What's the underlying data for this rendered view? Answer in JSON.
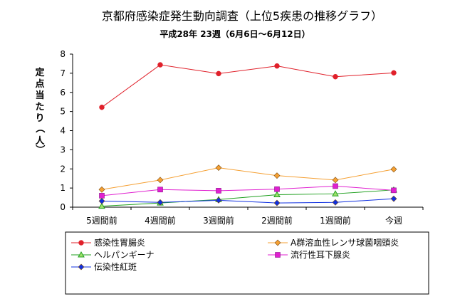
{
  "chart_data": {
    "type": "line",
    "title": "京都府感染症発生動向調査（上位5疾患の推移グラフ）",
    "subtitle": "平成28年 23週（6月6日～6月12日）",
    "ylabel_chars": [
      "定",
      "点",
      "当",
      "た",
      "り",
      "（",
      "人",
      "）"
    ],
    "xlabel": "",
    "categories": [
      "5週間前",
      "4週間前",
      "3週間前",
      "2週間前",
      "1週間前",
      "今週"
    ],
    "ylim": [
      0,
      8
    ],
    "yticks": [
      0,
      1,
      2,
      3,
      4,
      5,
      6,
      7,
      8
    ],
    "grid": false,
    "legend_placement": "bottom",
    "series": [
      {
        "name": "感染性胃腸炎",
        "color": "#e0202a",
        "marker": "circle",
        "values": [
          5.22,
          7.44,
          6.98,
          7.38,
          6.82,
          7.02
        ]
      },
      {
        "name": "A群溶血性レンサ球菌咽頭炎",
        "color": "#f5a033",
        "marker": "diamond",
        "values": [
          0.92,
          1.42,
          2.06,
          1.65,
          1.42,
          1.98
        ]
      },
      {
        "name": "ヘルパンギーナ",
        "color": "#20a020",
        "marker": "triangle",
        "values": [
          0.05,
          0.22,
          0.4,
          0.65,
          0.7,
          0.9
        ]
      },
      {
        "name": "流行性耳下腺炎",
        "color": "#e020d0",
        "marker": "square",
        "values": [
          0.6,
          0.92,
          0.86,
          0.94,
          1.1,
          0.88
        ]
      },
      {
        "name": "伝染性紅斑",
        "color": "#1030e0",
        "marker": "diamond",
        "values": [
          0.32,
          0.25,
          0.36,
          0.22,
          0.25,
          0.44
        ]
      }
    ]
  }
}
